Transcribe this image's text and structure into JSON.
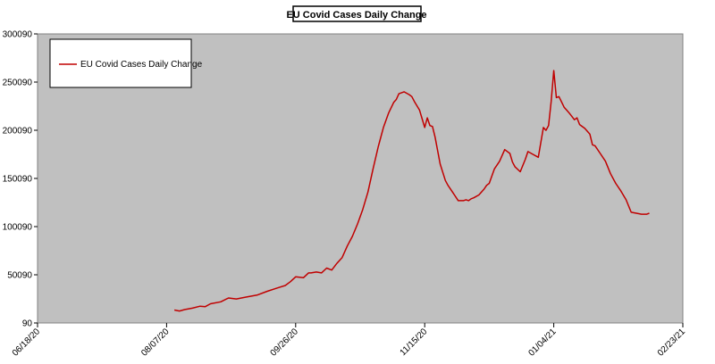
{
  "chart_data": {
    "type": "line",
    "title": "EU Covid Cases Daily Change",
    "xlabel": "",
    "ylabel": "",
    "grid": false,
    "legend_position": "top-left",
    "plot_background": "#c0c0c0",
    "line_color": "#c00000",
    "xlim": [
      "06/18/20",
      "02/23/21"
    ],
    "ylim": [
      90,
      300090
    ],
    "y_ticks": [
      90,
      50090,
      100090,
      150090,
      200090,
      250090,
      300090
    ],
    "x_ticks": [
      "06/18/20",
      "08/07/20",
      "09/26/20",
      "11/15/20",
      "01/04/21",
      "02/23/21"
    ],
    "series": [
      {
        "name": "EU Covid Cases Daily Change",
        "x": [
          "08/10/20",
          "08/12/20",
          "08/14/20",
          "08/17/20",
          "08/20/20",
          "08/22/20",
          "08/24/20",
          "08/28/20",
          "08/31/20",
          "09/03/20",
          "09/07/20",
          "09/11/20",
          "09/15/20",
          "09/19/20",
          "09/22/20",
          "09/24/20",
          "09/26/20",
          "09/29/20",
          "10/01/20",
          "10/02/20",
          "10/04/20",
          "10/06/20",
          "10/08/20",
          "10/10/20",
          "10/12/20",
          "10/14/20",
          "10/16/20",
          "10/18/20",
          "10/20/20",
          "10/22/20",
          "10/24/20",
          "10/26/20",
          "10/28/20",
          "10/30/20",
          "11/01/20",
          "11/03/20",
          "11/04/20",
          "11/05/20",
          "11/07/20",
          "11/09/20",
          "11/10/20",
          "11/11/20",
          "11/13/20",
          "11/15/20",
          "11/16/20",
          "11/17/20",
          "11/18/20",
          "11/19/20",
          "11/21/20",
          "11/23/20",
          "11/24/20",
          "11/26/20",
          "11/28/20",
          "11/30/20",
          "12/01/20",
          "12/02/20",
          "12/03/20",
          "12/04/20",
          "12/06/20",
          "12/08/20",
          "12/09/20",
          "12/10/20",
          "12/12/20",
          "12/14/20",
          "12/16/20",
          "12/18/20",
          "12/19/20",
          "12/20/20",
          "12/22/20",
          "12/24/20",
          "12/25/20",
          "12/27/20",
          "12/29/20",
          "12/31/20",
          "01/01/21",
          "01/02/21",
          "01/03/21",
          "01/04/21",
          "01/05/21",
          "01/06/21",
          "01/08/21",
          "01/10/21",
          "01/12/21",
          "01/13/21",
          "01/14/21",
          "01/16/21",
          "01/18/21",
          "01/19/21",
          "01/20/21",
          "01/22/21",
          "01/24/21",
          "01/26/21",
          "01/28/21",
          "01/30/21",
          "02/01/21",
          "02/03/21",
          "02/05/21",
          "02/07/21",
          "02/09/21",
          "02/10/21"
        ],
        "values": [
          13500,
          12500,
          14000,
          15500,
          17500,
          17000,
          20000,
          22000,
          26000,
          25000,
          27000,
          29000,
          33000,
          36500,
          39000,
          43000,
          48000,
          47000,
          52000,
          52000,
          53000,
          52000,
          57000,
          55000,
          62000,
          68000,
          80000,
          90000,
          103000,
          118000,
          136000,
          160000,
          183000,
          203000,
          218000,
          229000,
          232000,
          238000,
          240000,
          237000,
          235000,
          230000,
          221000,
          203000,
          213000,
          205000,
          204000,
          193000,
          165000,
          148000,
          143000,
          135000,
          127000,
          127000,
          128000,
          127000,
          129000,
          130000,
          133000,
          139000,
          143000,
          145000,
          160000,
          168000,
          180000,
          176000,
          167000,
          162000,
          157000,
          170000,
          178000,
          175000,
          172000,
          203000,
          200000,
          205000,
          230000,
          262000,
          234000,
          235000,
          224000,
          218000,
          211000,
          213000,
          206000,
          202000,
          196000,
          185000,
          184000,
          176000,
          168000,
          155000,
          145000,
          137000,
          128000,
          115000,
          114000,
          113000,
          113000,
          114000
        ]
      }
    ]
  }
}
